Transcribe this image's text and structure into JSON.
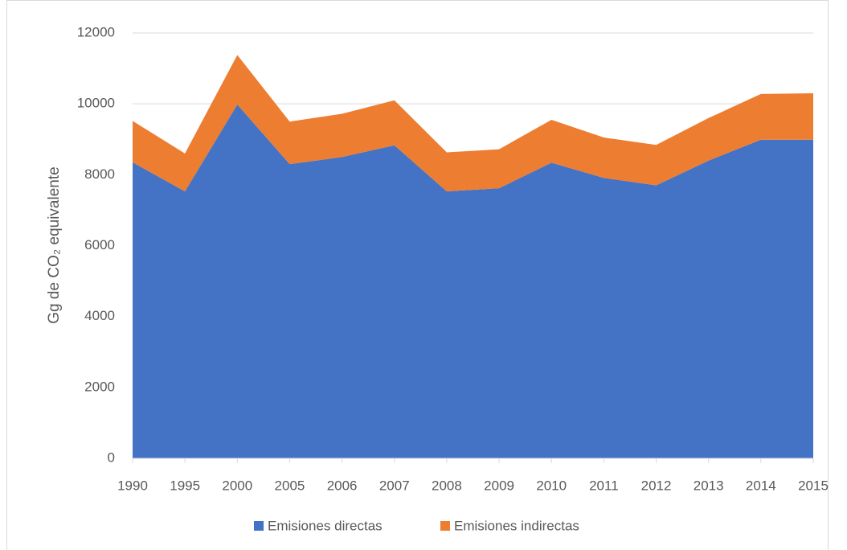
{
  "chart_data": {
    "type": "stacked_area",
    "y_label": "Gg de CO₂ equivalente",
    "categories": [
      "1990",
      "1995",
      "2000",
      "2005",
      "2006",
      "2007",
      "2008",
      "2009",
      "2010",
      "2011",
      "2012",
      "2013",
      "2014",
      "2015"
    ],
    "series": [
      {
        "name": "Emisiones directas",
        "color": "#4472c4",
        "values": [
          8350,
          7530,
          9980,
          8300,
          8500,
          8830,
          7530,
          7620,
          8340,
          7910,
          7700,
          8400,
          8990,
          8990
        ]
      },
      {
        "name": "Emisiones indirectas",
        "color": "#ed7d31",
        "values": [
          1170,
          1070,
          1400,
          1200,
          1220,
          1270,
          1100,
          1100,
          1210,
          1140,
          1140,
          1200,
          1290,
          1310
        ]
      }
    ],
    "ylim": [
      0,
      12000
    ],
    "yticks": [
      0,
      2000,
      4000,
      6000,
      8000,
      10000,
      12000
    ],
    "grid": true,
    "legend": "bottom"
  }
}
